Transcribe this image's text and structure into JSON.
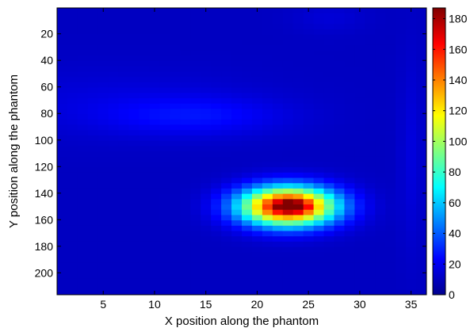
{
  "chart_data": {
    "type": "heatmap",
    "title": "",
    "xlabel": "X position along the phantom",
    "ylabel": "Y position along the phantom",
    "xlim": [
      0.5,
      36.5
    ],
    "ylim": [
      0.5,
      216.5
    ],
    "y_reversed": true,
    "x_ticks": [
      5,
      10,
      15,
      20,
      25,
      30,
      35
    ],
    "y_ticks": [
      20,
      40,
      60,
      80,
      100,
      120,
      140,
      160,
      180,
      200
    ],
    "colormap": "jet",
    "colorbar": {
      "range": [
        0,
        187
      ],
      "ticks": [
        0,
        20,
        40,
        60,
        80,
        100,
        120,
        140,
        160,
        180
      ]
    },
    "n_columns": 36,
    "row_height": 4,
    "background_level": 12,
    "peak": {
      "x": 23,
      "y": 150,
      "value": 187
    },
    "features": [
      {
        "center": [
          23,
          150
        ],
        "sigma": [
          3.2,
          10
        ],
        "amplitude": 170
      },
      {
        "center": [
          23.5,
          150
        ],
        "sigma": [
          0.9,
          2.5
        ],
        "amplitude": 45
      },
      {
        "center": [
          14,
          82
        ],
        "sigma": [
          6,
          10
        ],
        "amplitude": 12
      },
      {
        "center": [
          6,
          72
        ],
        "sigma": [
          10,
          18
        ],
        "amplitude": 5
      },
      {
        "center": [
          27,
          8
        ],
        "sigma": [
          2.5,
          8
        ],
        "amplitude": 4
      },
      {
        "center": [
          35,
          110
        ],
        "sigma": [
          0.8,
          50
        ],
        "amplitude": 5
      }
    ]
  }
}
